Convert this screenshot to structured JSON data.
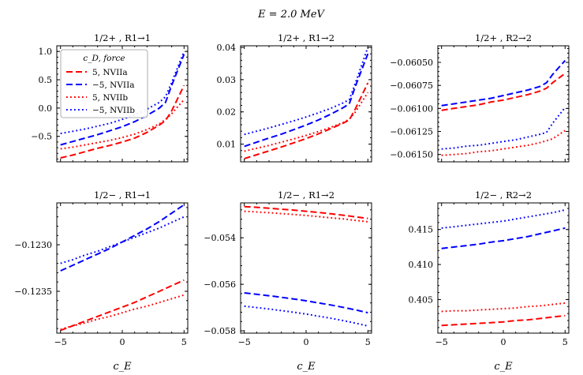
{
  "suptitle": "E = 2.0 MeV",
  "xlabel": "c_E",
  "legend": {
    "title": "c_D, force",
    "entries": [
      {
        "label": "5, NVIIa",
        "color": "#ff0000",
        "style": "dashed"
      },
      {
        "label": "−5, NVIIa",
        "color": "#0000ff",
        "style": "dashed"
      },
      {
        "label": "5, NVIIb",
        "color": "#ff0000",
        "style": "dotted"
      },
      {
        "label": "−5, NVIIb",
        "color": "#0000ff",
        "style": "dotted"
      }
    ]
  },
  "chart_data": [
    {
      "type": "line",
      "title": "1/2+ , R1→1",
      "x": [
        -5,
        -4,
        -3,
        -2,
        -1,
        0,
        1,
        2,
        3,
        3.5,
        4,
        5
      ],
      "xlim": [
        -5.3,
        5.3
      ],
      "ylim": [
        -0.95,
        1.1
      ],
      "xticks": [
        -5,
        0,
        5
      ],
      "yticks": [
        -0.5,
        0.0,
        0.5,
        1.0
      ],
      "yticklabels": [
        "−0.5",
        "0.0",
        "0.5",
        "1.0"
      ],
      "series": [
        {
          "name": "5, NVIIa",
          "color": "#ff0000",
          "style": "dashed",
          "values": [
            -0.88,
            -0.83,
            -0.77,
            -0.71,
            -0.66,
            -0.6,
            -0.53,
            -0.43,
            -0.3,
            -0.22,
            -0.05,
            0.4
          ]
        },
        {
          "name": "−5, NVIIa",
          "color": "#0000ff",
          "style": "dashed",
          "values": [
            -0.65,
            -0.59,
            -0.53,
            -0.47,
            -0.4,
            -0.33,
            -0.24,
            -0.13,
            0.0,
            0.1,
            0.4,
            0.95
          ]
        },
        {
          "name": "5, NVIIb",
          "color": "#ff0000",
          "style": "dotted",
          "values": [
            -0.72,
            -0.69,
            -0.65,
            -0.61,
            -0.57,
            -0.52,
            -0.46,
            -0.38,
            -0.28,
            -0.2,
            -0.1,
            0.15
          ]
        },
        {
          "name": "−5, NVIIb",
          "color": "#0000ff",
          "style": "dotted",
          "values": [
            -0.45,
            -0.41,
            -0.37,
            -0.32,
            -0.27,
            -0.2,
            -0.12,
            -0.02,
            0.1,
            0.2,
            0.45,
            1.0
          ]
        }
      ]
    },
    {
      "type": "line",
      "title": "1/2+ , R1→2",
      "x": [
        -5,
        -4,
        -3,
        -2,
        -1,
        0,
        1,
        2,
        3,
        3.5,
        4,
        5
      ],
      "xlim": [
        -5.3,
        5.3
      ],
      "ylim": [
        0.0045,
        0.0405
      ],
      "xticks": [
        -5,
        0,
        5
      ],
      "yticks": [
        0.01,
        0.02,
        0.03,
        0.04
      ],
      "yticklabels": [
        "0.01",
        "0.02",
        "0.03",
        "0.04"
      ],
      "series": [
        {
          "name": "5, NVIIa",
          "color": "#ff0000",
          "style": "dashed",
          "values": [
            0.0055,
            0.0067,
            0.0079,
            0.0091,
            0.0104,
            0.0117,
            0.0132,
            0.0148,
            0.0165,
            0.0175,
            0.021,
            0.029
          ]
        },
        {
          "name": "−5, NVIIa",
          "color": "#0000ff",
          "style": "dashed",
          "values": [
            0.0093,
            0.0106,
            0.0119,
            0.0131,
            0.0145,
            0.0159,
            0.0175,
            0.0193,
            0.0213,
            0.0225,
            0.028,
            0.038
          ]
        },
        {
          "name": "5, NVIIb",
          "color": "#ff0000",
          "style": "dotted",
          "values": [
            0.0078,
            0.0087,
            0.0096,
            0.0106,
            0.0116,
            0.0127,
            0.0139,
            0.0152,
            0.0167,
            0.0177,
            0.02,
            0.026
          ]
        },
        {
          "name": "−5, NVIIb",
          "color": "#0000ff",
          "style": "dotted",
          "values": [
            0.013,
            0.014,
            0.015,
            0.0161,
            0.0172,
            0.0184,
            0.0197,
            0.0211,
            0.0228,
            0.0238,
            0.029,
            0.04
          ]
        }
      ]
    },
    {
      "type": "line",
      "title": "1/2+ , R2→2",
      "x": [
        -5,
        -4,
        -3,
        -2,
        -1,
        0,
        1,
        2,
        3,
        3.5,
        4,
        5
      ],
      "xlim": [
        -5.3,
        5.3
      ],
      "ylim": [
        -0.06158,
        -0.06032
      ],
      "xticks": [
        -5,
        0,
        5
      ],
      "yticks": [
        -0.0615,
        -0.06125,
        -0.061,
        -0.06075,
        -0.0605
      ],
      "yticklabels": [
        "−0.06150",
        "−0.06125",
        "−0.06100",
        "−0.06075",
        "−0.06050"
      ],
      "series": [
        {
          "name": "5, NVIIa",
          "color": "#ff0000",
          "style": "dashed",
          "values": [
            -0.06102,
            -0.061,
            -0.06098,
            -0.06096,
            -0.06093,
            -0.06091,
            -0.06088,
            -0.06085,
            -0.06081,
            -0.06078,
            -0.06072,
            -0.06062
          ]
        },
        {
          "name": "−5, NVIIa",
          "color": "#0000ff",
          "style": "dashed",
          "values": [
            -0.06097,
            -0.06095,
            -0.06093,
            -0.06091,
            -0.06089,
            -0.06086,
            -0.06083,
            -0.0608,
            -0.06076,
            -0.06072,
            -0.06063,
            -0.06048
          ]
        },
        {
          "name": "5, NVIIb",
          "color": "#ff0000",
          "style": "dotted",
          "values": [
            -0.06151,
            -0.0615,
            -0.06149,
            -0.06147,
            -0.06146,
            -0.06144,
            -0.06142,
            -0.0614,
            -0.06137,
            -0.06135,
            -0.06133,
            -0.06124
          ]
        },
        {
          "name": "−5, NVIIb",
          "color": "#0000ff",
          "style": "dotted",
          "values": [
            -0.06144,
            -0.06143,
            -0.06141,
            -0.0614,
            -0.06138,
            -0.06136,
            -0.06134,
            -0.06131,
            -0.06128,
            -0.06126,
            -0.06116,
            -0.06099
          ]
        }
      ]
    },
    {
      "type": "line",
      "title": "1/2− , R1→1",
      "x": [
        -5,
        -4,
        -3,
        -2,
        -1,
        0,
        1,
        2,
        3,
        4,
        5
      ],
      "xlim": [
        -5.3,
        5.3
      ],
      "ylim": [
        -0.12395,
        -0.12255
      ],
      "xticks": [
        -5,
        0,
        5
      ],
      "yticks": [
        -0.1235,
        -0.123
      ],
      "yticklabels": [
        "−0.1235",
        "−0.1230"
      ],
      "series": [
        {
          "name": "5, NVIIa",
          "color": "#ff0000",
          "style": "dashed",
          "values": [
            -0.12392,
            -0.12387,
            -0.12382,
            -0.12377,
            -0.12372,
            -0.12367,
            -0.12362,
            -0.12356,
            -0.1235,
            -0.12344,
            -0.12338
          ]
        },
        {
          "name": "−5, NVIIa",
          "color": "#0000ff",
          "style": "dashed",
          "values": [
            -0.12328,
            -0.12322,
            -0.12316,
            -0.1231,
            -0.12304,
            -0.12297,
            -0.1229,
            -0.12283,
            -0.12275,
            -0.12266,
            -0.12257
          ]
        },
        {
          "name": "5, NVIIb",
          "color": "#ff0000",
          "style": "dotted",
          "values": [
            -0.12391,
            -0.12387,
            -0.12384,
            -0.1238,
            -0.12377,
            -0.12373,
            -0.12369,
            -0.12366,
            -0.12362,
            -0.12358,
            -0.12354
          ]
        },
        {
          "name": "−5, NVIIb",
          "color": "#0000ff",
          "style": "dotted",
          "values": [
            -0.1232,
            -0.12316,
            -0.12311,
            -0.12307,
            -0.12302,
            -0.12297,
            -0.12292,
            -0.12287,
            -0.12282,
            -0.12276,
            -0.1227
          ]
        }
      ]
    },
    {
      "type": "line",
      "title": "1/2− , R1→2",
      "x": [
        -5,
        -4,
        -3,
        -2,
        -1,
        0,
        1,
        2,
        3,
        4,
        5
      ],
      "xlim": [
        -5.3,
        5.3
      ],
      "ylim": [
        -0.0581,
        -0.0525
      ],
      "xticks": [
        -5,
        0,
        5
      ],
      "yticks": [
        -0.058,
        -0.056,
        -0.054
      ],
      "yticklabels": [
        "−0.058",
        "−0.056",
        "−0.054"
      ],
      "series": [
        {
          "name": "5, NVIIa",
          "color": "#ff0000",
          "style": "dashed",
          "values": [
            -0.05266,
            -0.05269,
            -0.05273,
            -0.05277,
            -0.05281,
            -0.05286,
            -0.05291,
            -0.05297,
            -0.05303,
            -0.0531,
            -0.05317
          ]
        },
        {
          "name": "−5, NVIIa",
          "color": "#0000ff",
          "style": "dashed",
          "values": [
            -0.05637,
            -0.05643,
            -0.05649,
            -0.05656,
            -0.05663,
            -0.05671,
            -0.0568,
            -0.05689,
            -0.05699,
            -0.0571,
            -0.05722
          ]
        },
        {
          "name": "5, NVIIb",
          "color": "#ff0000",
          "style": "dotted",
          "values": [
            -0.05286,
            -0.05289,
            -0.05292,
            -0.05296,
            -0.053,
            -0.05304,
            -0.05309,
            -0.05314,
            -0.05319,
            -0.05325,
            -0.05331
          ]
        },
        {
          "name": "−5, NVIIb",
          "color": "#0000ff",
          "style": "dotted",
          "values": [
            -0.05694,
            -0.057,
            -0.05706,
            -0.05713,
            -0.0572,
            -0.05728,
            -0.05737,
            -0.05746,
            -0.05756,
            -0.05767,
            -0.05779
          ]
        }
      ]
    },
    {
      "type": "line",
      "title": "1/2− , R2→2",
      "x": [
        -5,
        -4,
        -3,
        -2,
        -1,
        0,
        1,
        2,
        3,
        4,
        5
      ],
      "xlim": [
        -5.3,
        5.3
      ],
      "ylim": [
        0.4002,
        0.4188
      ],
      "xticks": [
        -5,
        0,
        5
      ],
      "yticks": [
        0.405,
        0.41,
        0.415
      ],
      "yticklabels": [
        "0.405",
        "0.410",
        "0.415"
      ],
      "series": [
        {
          "name": "5, NVIIa",
          "color": "#ff0000",
          "style": "dashed",
          "values": [
            0.4013,
            0.4014,
            0.4015,
            0.4016,
            0.4017,
            0.4018,
            0.402,
            0.4021,
            0.4023,
            0.4025,
            0.4027
          ]
        },
        {
          "name": "−5, NVIIa",
          "color": "#0000ff",
          "style": "dashed",
          "values": [
            0.4123,
            0.4125,
            0.4127,
            0.4129,
            0.4132,
            0.4134,
            0.4137,
            0.414,
            0.4144,
            0.4148,
            0.4152
          ]
        },
        {
          "name": "5, NVIIb",
          "color": "#ff0000",
          "style": "dotted",
          "values": [
            0.4033,
            0.4034,
            0.4034,
            0.4035,
            0.4036,
            0.4037,
            0.4038,
            0.404,
            0.4041,
            0.4043,
            0.4045
          ]
        },
        {
          "name": "−5, NVIIb",
          "color": "#0000ff",
          "style": "dotted",
          "values": [
            0.4152,
            0.4154,
            0.4156,
            0.4158,
            0.416,
            0.4162,
            0.4165,
            0.4168,
            0.4171,
            0.4174,
            0.4178
          ]
        }
      ]
    }
  ]
}
